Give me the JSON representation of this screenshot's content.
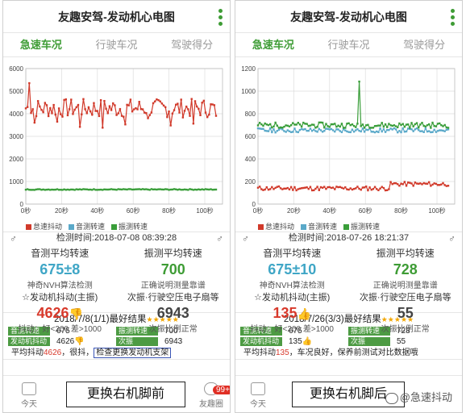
{
  "app_title": "友趣安驾-发动机心电图",
  "tabs": [
    "急速车况",
    "行驶车况",
    "驾驶得分"
  ],
  "panels": [
    {
      "chart": {
        "y_ticks": [
          "6000",
          "5000",
          "4000",
          "3000",
          "2000",
          "1000",
          "0"
        ],
        "x_ticks": [
          "0秒",
          "20秒",
          "40秒",
          "60秒",
          "80秒",
          "100秒"
        ],
        "legend": [
          "怠速抖动",
          "音测转速",
          "振测转速"
        ]
      },
      "check_time": "检测时间:2018-07-08 08:39:28",
      "left_col": {
        "h1": "音测平均转速",
        "v1": "675±8",
        "s1": "神奇NVH算法检测",
        "h2": "☆发动机抖动(主振)",
        "v2": "4626",
        "s2": "抖动：好<200 差>1000"
      },
      "right_col": {
        "h1": "振测平均转速",
        "v1": "700",
        "s1": "正确说明测量靠谱",
        "h2": "次振·行驶空压电子扇等",
        "v2": "6943",
        "s2": "次振比例正常"
      },
      "result_title": "2018/7/8(1/1)最好结果",
      "rows": [
        {
          "l1": "音测转速",
          "v1": "675",
          "l2": "振测转速",
          "v2": "700"
        },
        {
          "l1": "发动机抖动",
          "v1": "4626",
          "l2": "次振",
          "v2": "6943"
        }
      ],
      "summary_pre": "平均抖动",
      "summary_val": "4626",
      "summary_mid": "，很抖，",
      "summary_box": "检查更换发动机支架",
      "nav": {
        "today": "今天",
        "friends": "友趣圈",
        "badge": "99+"
      },
      "caption": "更换右机脚前"
    },
    {
      "chart": {
        "y_ticks": [
          "1200",
          "1000",
          "800",
          "600",
          "400",
          "200",
          "0"
        ],
        "x_ticks": [
          "0秒",
          "20秒",
          "40秒",
          "60秒",
          "80秒",
          "100秒"
        ],
        "legend": [
          "怠速抖动",
          "音测转速",
          "振测转速"
        ]
      },
      "check_time": "检测时间:2018-07-26 18:21:37",
      "left_col": {
        "h1": "音测平均转速",
        "v1": "675±10",
        "s1": "神奇NVH算法检测",
        "h2": "☆发动机抖动(主振)",
        "v2": "135",
        "s2": "抖动：好<200 差>1000"
      },
      "right_col": {
        "h1": "振测平均转速",
        "v1": "728",
        "s1": "正确说明测量靠谱",
        "h2": "次振·行驶空压电子扇等",
        "v2": "55",
        "s2": "次振比例正常"
      },
      "result_title": "2018/7/26(3/3)最好结果",
      "rows": [
        {
          "l1": "音测转速",
          "v1": "675",
          "l2": "振测转速",
          "v2": "728"
        },
        {
          "l1": "发动机抖动",
          "v1": "135",
          "l2": "次振",
          "v2": "55"
        }
      ],
      "summary_pre": "平均抖动",
      "summary_val": "135",
      "summary_mid": "，车况良好，保养前测试对比数据哦",
      "summary_box": "",
      "nav": {
        "today": "今天"
      },
      "caption": "更换右机脚后"
    }
  ],
  "watermark": "@急速抖动",
  "colors": {
    "green": "#3e9c35",
    "red": "#d8392b",
    "blue": "#3fa6c6",
    "series_red": "#d13a2b",
    "series_blue": "#5aa9c9",
    "series_green": "#3a9e3a"
  }
}
